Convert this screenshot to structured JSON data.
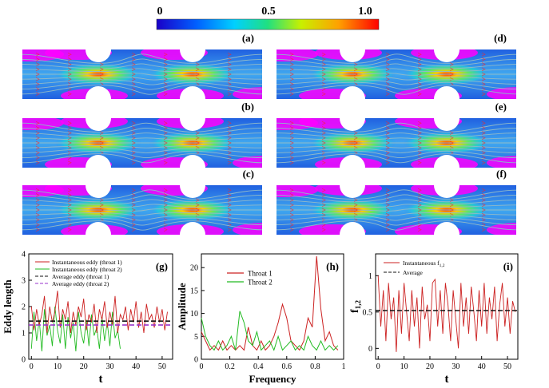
{
  "colorbar": {
    "min_label": "0",
    "mid_label": "0.5",
    "max_label": "1.0"
  },
  "contour_panels": [
    {
      "label": "(a)"
    },
    {
      "label": "(b)"
    },
    {
      "label": "(c)"
    },
    {
      "label": "(d)"
    },
    {
      "label": "(e)"
    },
    {
      "label": "(f)"
    }
  ],
  "colors": {
    "channel_bg": "#3a8ee8",
    "recirculation": "#ff00ff",
    "streamline": "#8fb9c9",
    "arrow": "#ff2222",
    "throat1": "#cc2222",
    "throat2": "#22bb22",
    "avg1": "#111111",
    "avg2": "#9933cc"
  },
  "chart_data": [
    {
      "type": "line",
      "label": "(g)",
      "xlabel": "t",
      "ylabel": "Eddy length",
      "xlim": [
        -1,
        54
      ],
      "ylim": [
        0,
        4
      ],
      "xticks": [
        "0",
        "10",
        "20",
        "30",
        "40",
        "50"
      ],
      "yticks": [
        "0",
        "1",
        "2",
        "3",
        "4"
      ],
      "legend": [
        "Instantaneous eddy (throat 1)",
        "Instantaneous eddy (throat 2)",
        "Average eddy (throat 1)",
        "Average eddy (throat 2)"
      ],
      "series": [
        {
          "name": "Instantaneous eddy (throat 1)",
          "x_start": 0,
          "x_end": 52,
          "values": [
            2.0,
            1.1,
            1.9,
            1.3,
            1.7,
            2.4,
            1.0,
            2.0,
            1.4,
            1.8,
            2.6,
            1.2,
            1.9,
            1.5,
            2.2,
            1.0,
            1.8,
            1.3,
            2.0,
            1.6,
            2.3,
            1.1,
            1.7,
            1.4,
            2.1,
            1.0,
            1.9,
            1.5,
            2.2,
            1.2,
            1.8,
            1.3,
            2.4,
            1.0,
            1.7,
            1.5,
            2.0,
            1.1,
            1.9,
            1.4,
            2.2,
            1.2,
            1.8,
            1.0,
            2.1,
            1.5,
            1.7,
            1.2,
            2.0,
            1.4,
            1.9,
            1.1,
            1.8
          ]
        },
        {
          "name": "Instantaneous eddy (throat 2)",
          "x_start": 0,
          "x_end": 34,
          "values": [
            0.4,
            1.8,
            0.7,
            1.5,
            0.3,
            1.9,
            0.9,
            1.3,
            0.5,
            2.0,
            1.1,
            0.6,
            1.7,
            0.4,
            1.6,
            0.8,
            1.4,
            0.3,
            1.8,
            1.0,
            0.6,
            1.5,
            0.5,
            1.7,
            0.9,
            1.2,
            0.4,
            1.6,
            0.7,
            1.4,
            0.5,
            1.8,
            0.8,
            1.1,
            0.4
          ]
        },
        {
          "name": "Average eddy (throat 1)",
          "style": "dashed",
          "constant": 1.45
        },
        {
          "name": "Average eddy (throat 2)",
          "style": "dashed",
          "constant": 1.3
        }
      ]
    },
    {
      "type": "line",
      "label": "(h)",
      "xlabel": "Frequency",
      "ylabel": "Amplitude",
      "xlim": [
        0,
        1
      ],
      "ylim": [
        0,
        23
      ],
      "xticks": [
        "0",
        "0.2",
        "0.4",
        "0.6",
        "0.8",
        "1"
      ],
      "yticks": [
        "0",
        "5",
        "10",
        "15",
        "20"
      ],
      "legend": [
        "Throat 1",
        "Throat 2"
      ],
      "series": [
        {
          "name": "Throat 1",
          "x": [
            0,
            0.03,
            0.06,
            0.09,
            0.12,
            0.15,
            0.18,
            0.21,
            0.24,
            0.27,
            0.3,
            0.33,
            0.36,
            0.39,
            0.42,
            0.45,
            0.48,
            0.51,
            0.54,
            0.57,
            0.6,
            0.63,
            0.66,
            0.69,
            0.72,
            0.75,
            0.78,
            0.81,
            0.84,
            0.87,
            0.9,
            0.93,
            0.96
          ],
          "y": [
            6,
            4,
            2,
            3,
            2,
            4,
            2,
            3,
            2,
            3,
            2,
            7,
            3,
            2,
            4,
            2,
            3,
            5,
            8,
            12,
            9,
            4,
            3,
            2,
            4,
            9,
            7,
            22.5,
            11,
            4,
            6,
            3,
            2
          ]
        },
        {
          "name": "Throat 2",
          "x": [
            0,
            0.03,
            0.06,
            0.09,
            0.12,
            0.15,
            0.18,
            0.21,
            0.24,
            0.27,
            0.3,
            0.33,
            0.36,
            0.39,
            0.42,
            0.45,
            0.48,
            0.51,
            0.54,
            0.57,
            0.6,
            0.63,
            0.66,
            0.69,
            0.72,
            0.75,
            0.78,
            0.81,
            0.84,
            0.87,
            0.9,
            0.93,
            0.96
          ],
          "y": [
            9,
            5,
            3,
            2,
            4,
            2,
            3,
            5,
            2,
            10.5,
            8,
            4,
            3,
            6,
            2,
            3,
            4,
            2,
            5,
            2,
            3,
            4,
            2,
            3,
            2,
            5,
            3,
            2,
            4,
            2,
            3,
            2,
            3
          ]
        }
      ]
    },
    {
      "type": "line",
      "label": "(i)",
      "xlabel": "t",
      "ylabel": "f",
      "ylabel_sub": "1,2",
      "xlim": [
        -1,
        54
      ],
      "ylim": [
        -0.15,
        1.3
      ],
      "xticks": [
        "0",
        "10",
        "20",
        "30",
        "40",
        "50"
      ],
      "yticks": [
        "0",
        "0.5",
        "1"
      ],
      "legend_main": "Instantaneous f",
      "legend_sub": "1,2",
      "legend_avg": "Average",
      "series": [
        {
          "name": "Instantaneous f1,2",
          "x_start": 0,
          "x_end": 53,
          "values": [
            1.0,
            0.3,
            0.8,
            0.1,
            0.9,
            0.4,
            0.7,
            -0.05,
            0.8,
            0.2,
            0.9,
            0.5,
            0.1,
            0.8,
            0.3,
            0.7,
            0.0,
            0.85,
            0.4,
            0.6,
            0.1,
            0.9,
            0.95,
            0.3,
            0.8,
            0.2,
            0.9,
            0.6,
            0.1,
            0.8,
            0.4,
            0.0,
            0.9,
            0.3,
            0.7,
            0.2,
            0.85,
            0.5,
            0.1,
            0.8,
            0.3,
            0.9,
            0.2,
            0.7,
            0.4,
            0.85,
            0.1,
            0.6,
            0.9,
            0.3,
            0.7,
            0.2,
            0.65,
            0.5
          ]
        },
        {
          "name": "Average",
          "style": "dashed",
          "constant": 0.52
        }
      ]
    }
  ]
}
